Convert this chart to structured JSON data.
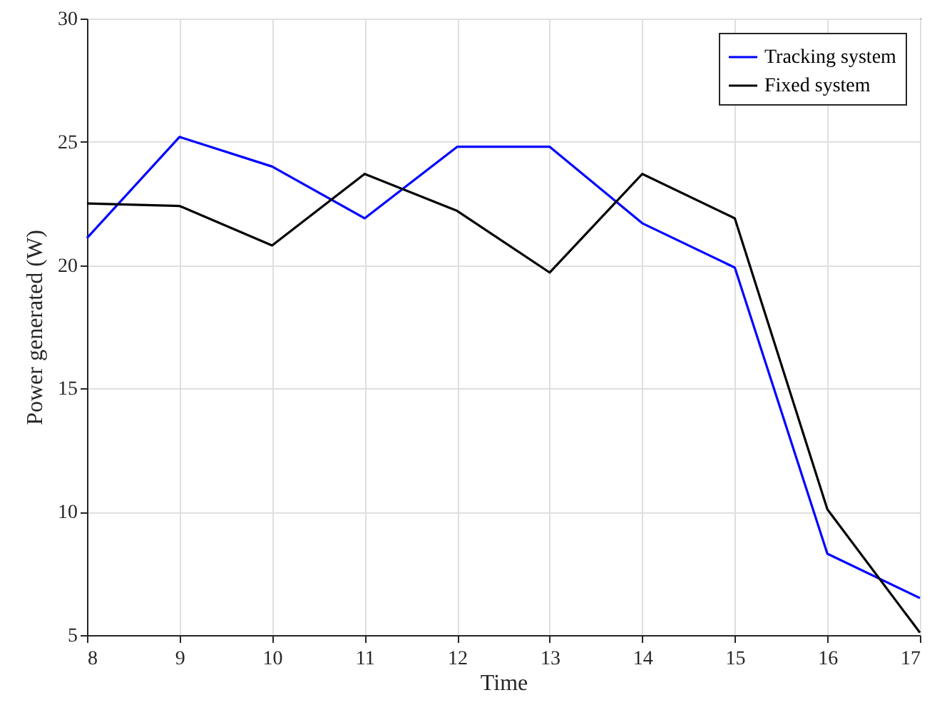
{
  "chart_data": {
    "type": "line",
    "xlabel": "Time",
    "ylabel": "Power generated (W)",
    "x": [
      8,
      9,
      10,
      11,
      12,
      13,
      14,
      15,
      16,
      17
    ],
    "series": [
      {
        "name": "Tracking system",
        "color": "#0000ff",
        "values": [
          21.1,
          25.2,
          24.0,
          21.9,
          24.8,
          24.8,
          21.7,
          19.9,
          8.3,
          6.5
        ]
      },
      {
        "name": "Fixed system",
        "color": "#000000",
        "values": [
          22.5,
          22.4,
          20.8,
          23.7,
          22.2,
          19.7,
          23.7,
          21.9,
          10.1,
          5.1
        ]
      }
    ],
    "xlim": [
      8,
      17
    ],
    "xticks": [
      8,
      9,
      10,
      11,
      12,
      13,
      14,
      15,
      16,
      17
    ],
    "ylim": [
      5,
      30
    ],
    "yticks": [
      5,
      10,
      15,
      20,
      25,
      30
    ],
    "grid": true,
    "legend": "top right",
    "marker": "none",
    "line_style": "solid"
  }
}
